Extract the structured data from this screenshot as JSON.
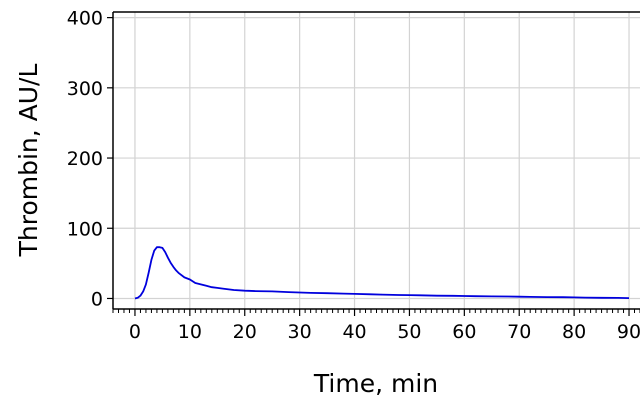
{
  "chart_data": {
    "type": "line",
    "xlabel": "Time, min",
    "ylabel": "Thrombin, AU/L",
    "xlim": [
      -4,
      92
    ],
    "ylim": [
      -15,
      408
    ],
    "xticks": [
      "0",
      "10",
      "20",
      "30",
      "40",
      "50",
      "60",
      "70",
      "80",
      "90"
    ],
    "yticks": [
      "0",
      "100",
      "200",
      "300",
      "400"
    ],
    "grid": true,
    "series": [
      {
        "color": "#0000dd",
        "x": [
          0,
          0.5,
          1,
          1.5,
          2,
          2.5,
          3,
          3.5,
          4,
          4.5,
          5,
          5.5,
          6,
          6.5,
          7,
          7.5,
          8,
          9,
          10,
          11,
          12,
          13,
          14,
          15,
          16,
          18,
          20,
          22,
          25,
          28,
          30,
          32,
          35,
          38,
          40,
          43,
          45,
          48,
          50,
          52,
          55,
          58,
          60,
          62,
          65,
          68,
          70,
          72,
          75,
          78,
          80,
          82,
          85,
          88,
          90
        ],
        "y": [
          0,
          1,
          4,
          10,
          20,
          37,
          55,
          68,
          73,
          73,
          72,
          66,
          58,
          51,
          45,
          40,
          36,
          30,
          27,
          22,
          20,
          18,
          16,
          15,
          14,
          12,
          11,
          10.5,
          10,
          9,
          8.5,
          8,
          7.5,
          7,
          6.5,
          6,
          5.5,
          5,
          4.8,
          4.5,
          4,
          3.8,
          3.5,
          3.3,
          3,
          2.8,
          2.5,
          2.3,
          2,
          1.8,
          1.5,
          1.3,
          1,
          0.8,
          0.5
        ]
      }
    ]
  }
}
